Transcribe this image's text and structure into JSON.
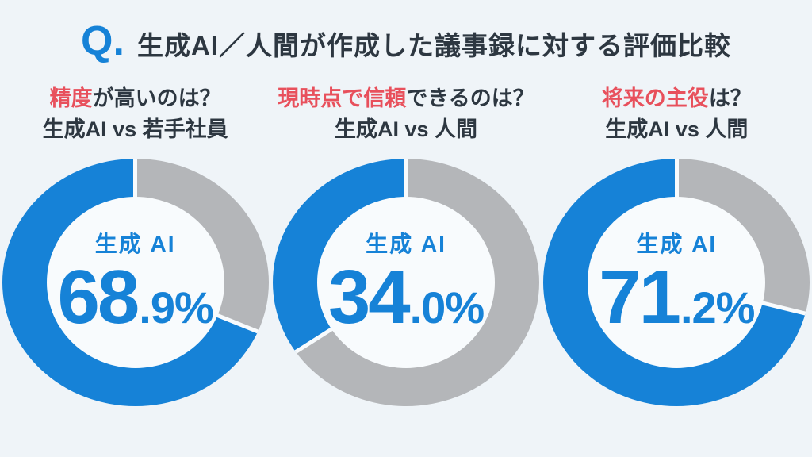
{
  "title": {
    "q_label": "Q.",
    "text": "生成AI／人間が作成した議事録に対する評価比較"
  },
  "colors": {
    "blue": "#1682d7",
    "gray": "#b4b6b9",
    "red": "#e8505c",
    "dark": "#2d3741",
    "background": "#eff4f8",
    "hole": "#f8fbfd"
  },
  "chart_data": [
    {
      "type": "pie",
      "title": "精度が高いのは？",
      "title_highlight": "精度",
      "title_rest": "が高いのは？",
      "subtitle": "生成AI vs 若手社員",
      "center_label": "生成 AI",
      "value": 68.9,
      "value_int": "68",
      "value_dec": ".9",
      "percent_sign": "%",
      "start_angle": "top",
      "gray_segment_clockwise_from_top": true,
      "series": [
        {
          "name": "生成AI",
          "value": 68.9,
          "color": "#1682d7"
        },
        {
          "name": "若手社員",
          "value": 31.1,
          "color": "#b4b6b9"
        }
      ]
    },
    {
      "type": "pie",
      "title": "現時点で信頼できるのは？",
      "title_highlight": "現時点で信頼",
      "title_rest": "できるのは？",
      "subtitle": "生成AI vs 人間",
      "center_label": "生成 AI",
      "value": 34.0,
      "value_int": "34",
      "value_dec": ".0",
      "percent_sign": "%",
      "start_angle": "top",
      "gray_segment_clockwise_from_top": true,
      "series": [
        {
          "name": "生成AI",
          "value": 34.0,
          "color": "#1682d7"
        },
        {
          "name": "人間",
          "value": 66.0,
          "color": "#b4b6b9"
        }
      ]
    },
    {
      "type": "pie",
      "title": "将来の主役は？",
      "title_highlight": "将来の主役",
      "title_rest": "は？",
      "subtitle": "生成AI vs 人間",
      "center_label": "生成 AI",
      "value": 71.2,
      "value_int": "71",
      "value_dec": ".2",
      "percent_sign": "%",
      "start_angle": "top",
      "gray_segment_clockwise_from_top": true,
      "series": [
        {
          "name": "生成AI",
          "value": 71.2,
          "color": "#1682d7"
        },
        {
          "name": "人間",
          "value": 28.8,
          "color": "#b4b6b9"
        }
      ]
    }
  ]
}
